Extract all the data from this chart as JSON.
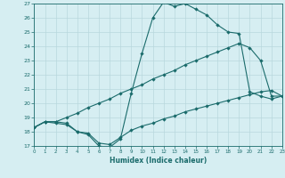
{
  "xlabel": "Humidex (Indice chaleur)",
  "bg_color": "#d6eef2",
  "grid_color": "#b8d8dd",
  "line_color": "#1a6b6b",
  "xlim": [
    0,
    23
  ],
  "ylim": [
    17,
    27
  ],
  "xticks": [
    0,
    1,
    2,
    3,
    4,
    5,
    6,
    7,
    8,
    9,
    10,
    11,
    12,
    13,
    14,
    15,
    16,
    17,
    18,
    19,
    20,
    21,
    22,
    23
  ],
  "yticks": [
    17,
    18,
    19,
    20,
    21,
    22,
    23,
    24,
    25,
    26,
    27
  ],
  "curve1_x": [
    0,
    1,
    2,
    3,
    4,
    5,
    6,
    7,
    8,
    9,
    10,
    11,
    12,
    13,
    14,
    15,
    16,
    17,
    18,
    19,
    20,
    21,
    22,
    23
  ],
  "curve1_y": [
    18.3,
    18.7,
    18.6,
    18.5,
    18.0,
    17.8,
    17.0,
    16.9,
    17.5,
    20.7,
    23.5,
    26.0,
    27.1,
    26.8,
    27.0,
    26.6,
    26.2,
    25.5,
    25.0,
    24.9,
    20.8,
    20.5,
    20.3,
    20.5
  ],
  "curve2_x": [
    0,
    1,
    2,
    3,
    4,
    5,
    6,
    7,
    8,
    9,
    10,
    11,
    12,
    13,
    14,
    15,
    16,
    17,
    18,
    19,
    20,
    21,
    22,
    23
  ],
  "curve2_y": [
    18.3,
    18.7,
    18.7,
    19.0,
    19.3,
    19.7,
    20.0,
    20.3,
    20.7,
    21.0,
    21.3,
    21.7,
    22.0,
    22.3,
    22.7,
    23.0,
    23.3,
    23.6,
    23.9,
    24.2,
    23.9,
    23.0,
    20.5,
    20.5
  ],
  "curve3_x": [
    0,
    1,
    2,
    3,
    4,
    5,
    6,
    7,
    8,
    9,
    10,
    11,
    12,
    13,
    14,
    15,
    16,
    17,
    18,
    19,
    20,
    21,
    22,
    23
  ],
  "curve3_y": [
    18.3,
    18.7,
    18.7,
    18.6,
    18.0,
    17.9,
    17.2,
    17.1,
    17.6,
    18.1,
    18.4,
    18.6,
    18.9,
    19.1,
    19.4,
    19.6,
    19.8,
    20.0,
    20.2,
    20.4,
    20.6,
    20.8,
    20.9,
    20.5
  ]
}
